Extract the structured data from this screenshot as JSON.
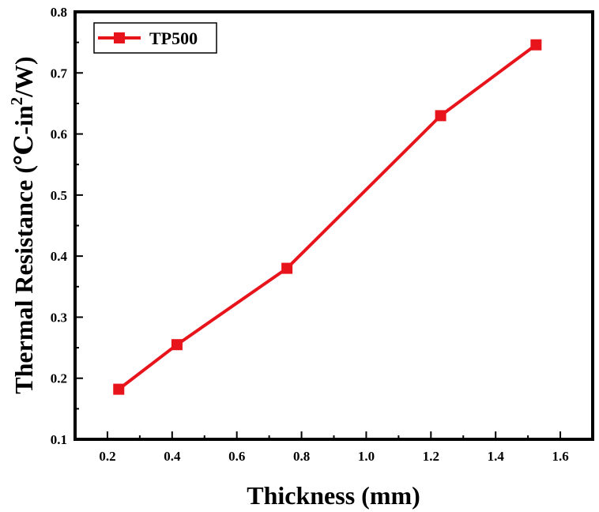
{
  "chart_data": {
    "type": "line",
    "xlabel": "Thickness (mm)",
    "ylabel": {
      "prefix": "Thermal Resistance (",
      "unit_main": "℃-in",
      "superscript": "2",
      "unit_tail": "/W)"
    },
    "xlim": [
      0.1,
      1.7
    ],
    "ylim": [
      0.1,
      0.8
    ],
    "x_ticks": [
      "0.2",
      "0.4",
      "0.6",
      "0.8",
      "1.0",
      "1.2",
      "1.4",
      "1.6"
    ],
    "y_ticks": [
      "0.1",
      "0.2",
      "0.3",
      "0.4",
      "0.5",
      "0.6",
      "0.7",
      "0.8"
    ],
    "grid": false,
    "legend_position": "top-left",
    "series": [
      {
        "name": "TP500",
        "color": "#e8141b",
        "marker": "square",
        "x": [
          0.235,
          0.415,
          0.755,
          1.23,
          1.525
        ],
        "y": [
          0.182,
          0.255,
          0.38,
          0.63,
          0.746
        ]
      }
    ]
  }
}
